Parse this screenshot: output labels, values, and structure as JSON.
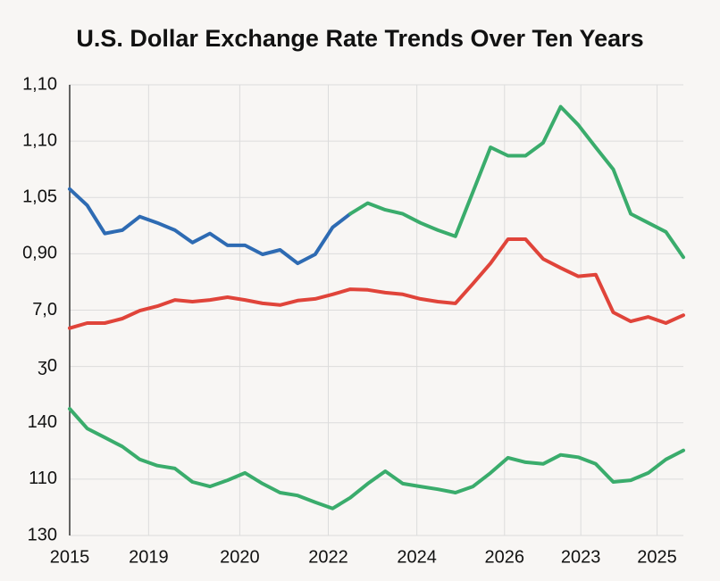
{
  "chart_data": {
    "type": "line",
    "title": "U.S. Dollar Exchange Rate Trends Over Ten Years",
    "x": [
      0,
      0.2,
      0.4,
      0.6,
      0.8,
      1,
      1.2,
      1.4,
      1.6,
      1.8,
      2,
      2.2,
      2.4,
      2.6,
      2.8,
      3,
      3.2,
      3.4,
      3.6,
      3.8,
      4,
      4.2,
      4.4,
      4.6,
      4.8,
      5,
      5.2,
      5.4,
      5.6,
      5.8,
      6,
      6.2,
      6.4,
      6.6,
      6.8,
      7
    ],
    "xlim": [
      0,
      7
    ],
    "xticks": [
      {
        "value": 0,
        "label": "2015"
      },
      {
        "value": 0.9,
        "label": "2019"
      },
      {
        "value": 1.94,
        "label": "2020"
      },
      {
        "value": 2.95,
        "label": "2022"
      },
      {
        "value": 3.96,
        "label": "2024"
      },
      {
        "value": 4.96,
        "label": "2026"
      },
      {
        "value": 5.83,
        "label": "2023"
      },
      {
        "value": 6.7,
        "label": "2025"
      }
    ],
    "ylim": [
      0,
      8
    ],
    "yticks": [
      {
        "value": 0,
        "label": "130"
      },
      {
        "value": 1,
        "label": "110"
      },
      {
        "value": 2,
        "label": "140"
      },
      {
        "value": 3,
        "label": "ʒ0"
      },
      {
        "value": 4,
        "label": "7,0"
      },
      {
        "value": 5,
        "label": "0,90"
      },
      {
        "value": 6,
        "label": "1,05"
      },
      {
        "value": 7,
        "label": "1,10"
      },
      {
        "value": 8,
        "label": "1,10"
      }
    ],
    "grid": true,
    "series": [
      {
        "color": "#2e6bb3",
        "values": [
          6.15,
          5.86,
          5.36,
          5.42,
          5.66,
          5.55,
          5.42,
          5.2,
          5.36,
          5.15,
          5.15,
          4.99,
          5.07,
          4.83,
          4.99,
          5.47,
          5.71,
          null,
          null,
          null,
          null,
          null,
          null,
          null,
          null,
          null,
          null,
          null,
          null,
          null,
          null,
          null,
          null,
          null,
          null,
          null
        ]
      },
      {
        "color": "#3aac6c",
        "values": [
          null,
          null,
          null,
          null,
          null,
          null,
          null,
          null,
          null,
          null,
          null,
          null,
          null,
          null,
          null,
          null,
          5.71,
          5.9,
          5.78,
          5.71,
          5.55,
          5.42,
          5.31,
          6.1,
          6.89,
          6.74,
          6.74,
          6.97,
          7.61,
          7.29,
          6.89,
          6.5,
          5.71,
          5.55,
          5.39,
          4.94
        ]
      },
      {
        "color": "#e0443a",
        "values": [
          3.68,
          3.77,
          3.77,
          3.85,
          3.99,
          4.07,
          4.18,
          4.15,
          4.18,
          4.23,
          4.18,
          4.12,
          4.09,
          4.17,
          4.2,
          4.28,
          4.37,
          4.36,
          4.31,
          4.28,
          4.2,
          4.15,
          4.12,
          4.47,
          4.83,
          5.26,
          5.26,
          4.91,
          4.75,
          4.6,
          4.63,
          3.96,
          3.8,
          3.88,
          3.77,
          3.91
        ]
      },
      {
        "color": "#3aac6c",
        "values": [
          2.25,
          1.9,
          1.74,
          1.58,
          1.35,
          1.24,
          1.19,
          0.95,
          0.87,
          0.98,
          1.11,
          0.92,
          0.76,
          0.71,
          0.59,
          0.48,
          0.67,
          0.92,
          1.14,
          0.92,
          0.87,
          0.82,
          0.76,
          0.87,
          1.11,
          1.38,
          1.3,
          1.27,
          1.43,
          1.39,
          1.27,
          0.95,
          0.98,
          1.11,
          1.35,
          1.51
        ]
      }
    ]
  }
}
